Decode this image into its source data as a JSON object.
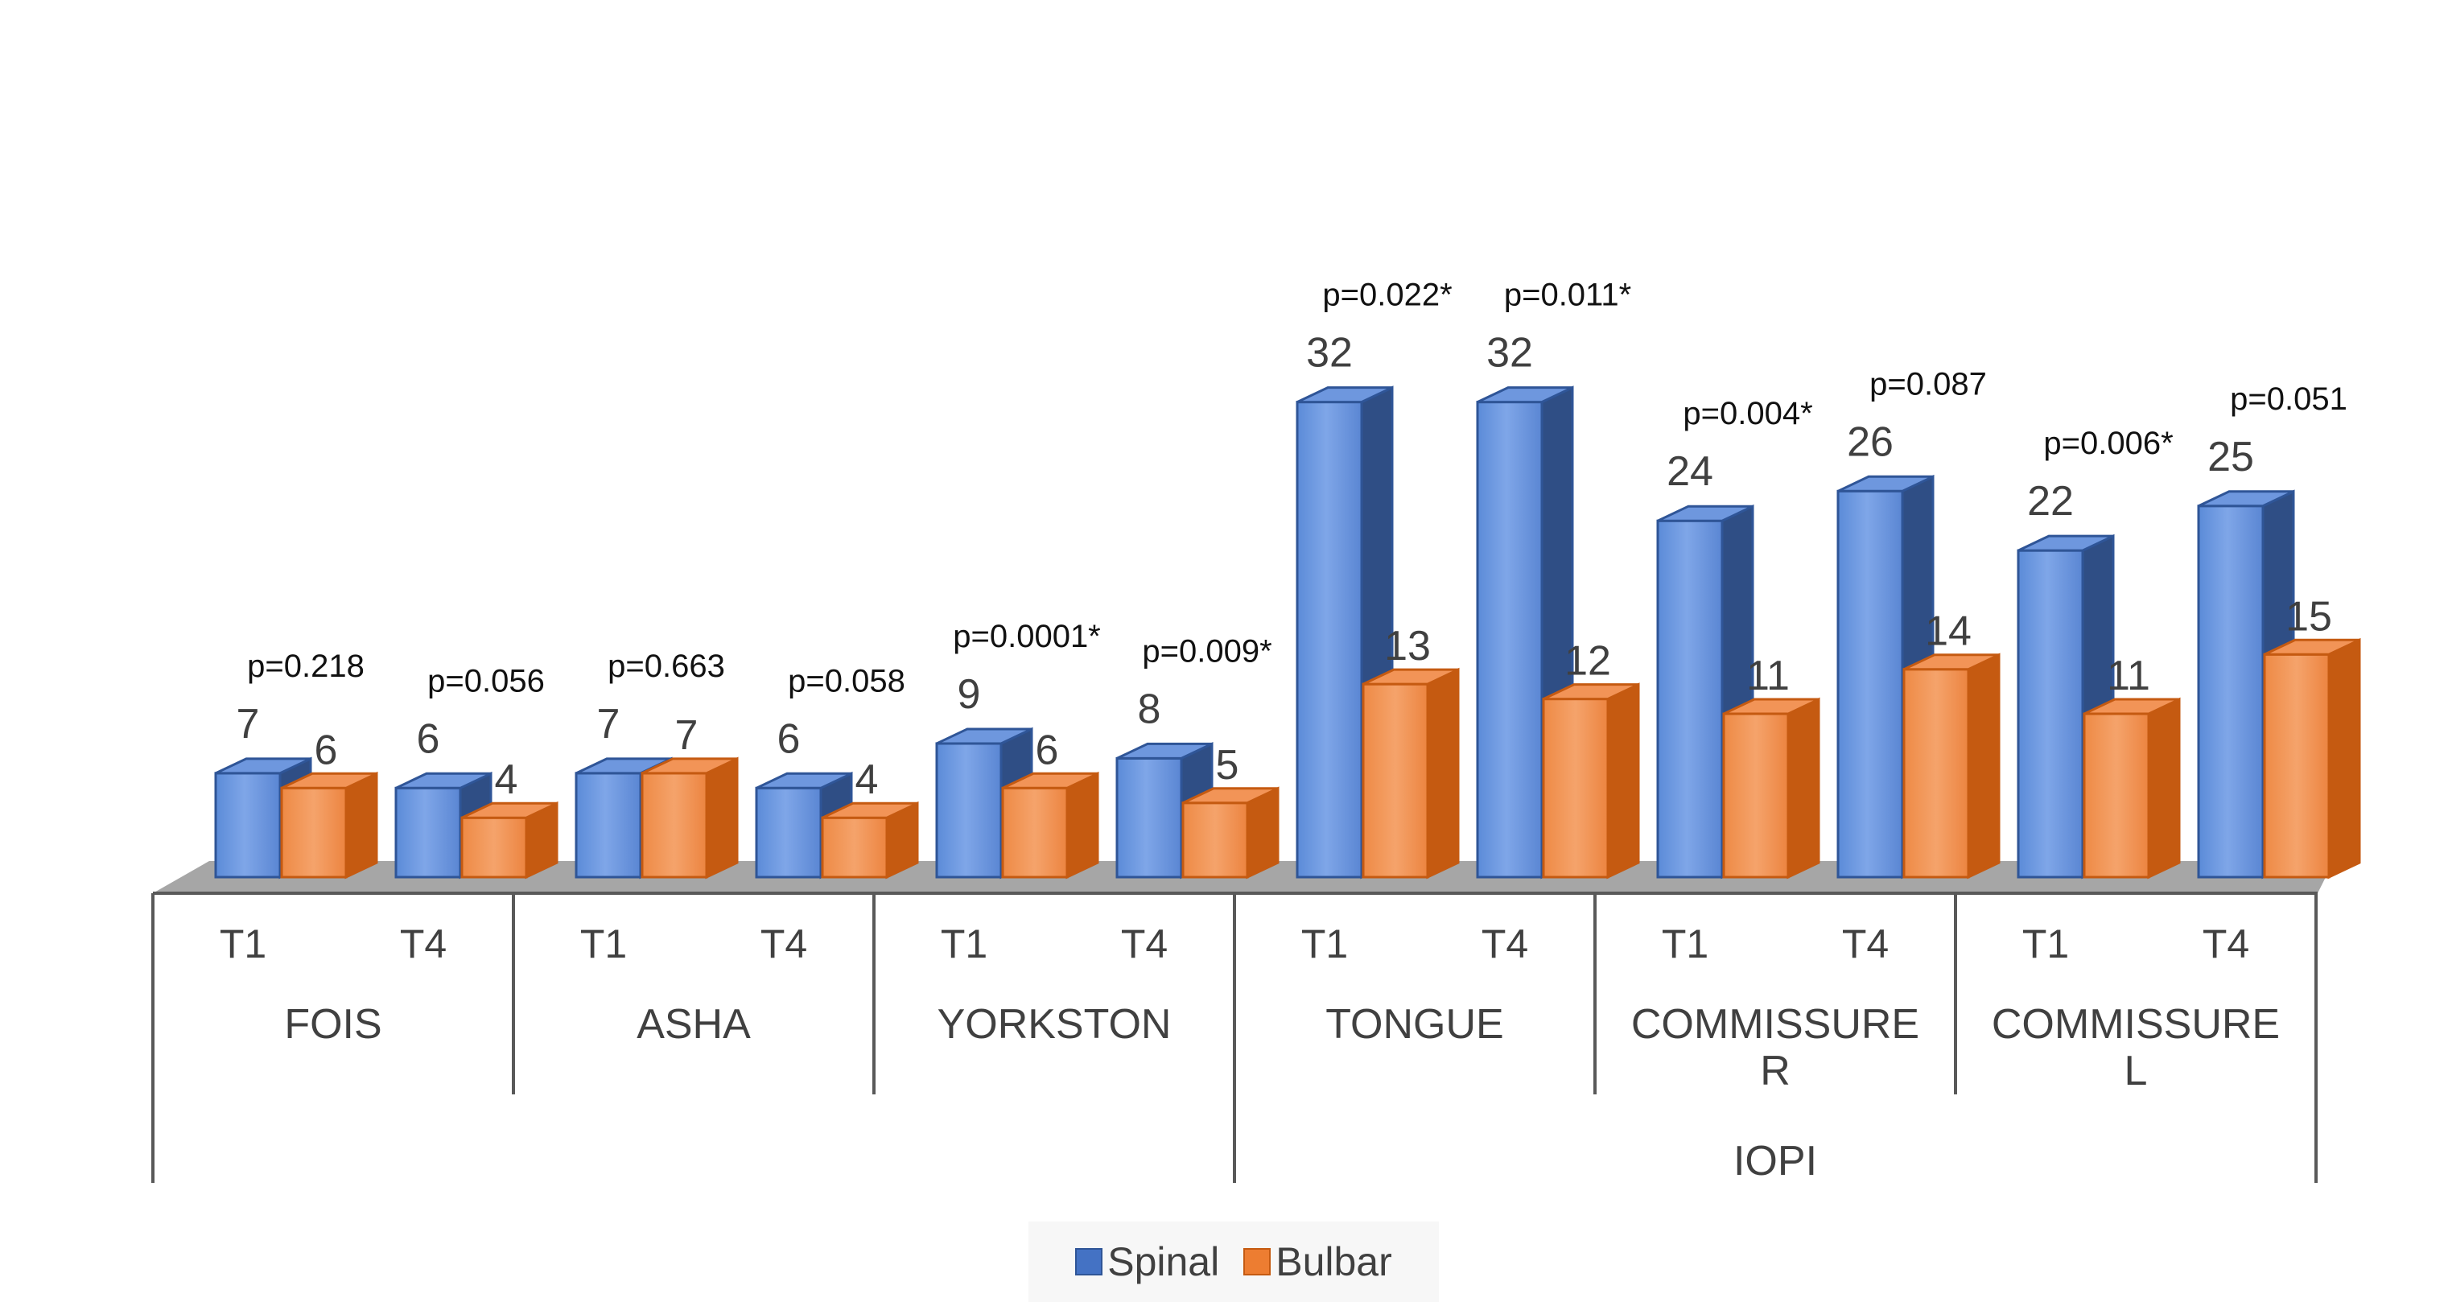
{
  "chart_data": {
    "type": "bar",
    "style": "3d-clustered-column",
    "title": "",
    "xlabel": "",
    "ylabel": "",
    "ylim": [
      0,
      35
    ],
    "grid": false,
    "legend_position": "bottom",
    "groups": [
      {
        "name": "FOIS",
        "supergroup": ""
      },
      {
        "name": "ASHA",
        "supergroup": ""
      },
      {
        "name": "YORKSTON",
        "supergroup": ""
      },
      {
        "name": "TONGUE",
        "supergroup": "IOPI"
      },
      {
        "name": "COMMISSURE R",
        "supergroup": "IOPI"
      },
      {
        "name": "COMMISSURE L",
        "supergroup": "IOPI"
      }
    ],
    "group_lines": [
      [
        "FOIS"
      ],
      [
        "ASHA"
      ],
      [
        "YORKSTON"
      ],
      [
        "TONGUE"
      ],
      [
        "COMMISSURE",
        "R"
      ],
      [
        "COMMISSURE",
        "L"
      ]
    ],
    "supergroup_label": "IOPI",
    "timepoints": [
      "T1",
      "T4"
    ],
    "categories": [
      "FOIS T1",
      "FOIS T4",
      "ASHA T1",
      "ASHA T4",
      "YORKSTON T1",
      "YORKSTON T4",
      "TONGUE T1",
      "TONGUE T4",
      "COMMISSURE R T1",
      "COMMISSURE R T4",
      "COMMISSURE L T1",
      "COMMISSURE L T4"
    ],
    "tick_labels": [
      "T1",
      "T4",
      "T1",
      "T4",
      "T1",
      "T4",
      "T1",
      "T4",
      "T1",
      "T4",
      "T1",
      "T4"
    ],
    "series": [
      {
        "name": "Spinal",
        "color": "#4472C4",
        "values": [
          7,
          6,
          7,
          6,
          9,
          8,
          32,
          32,
          24,
          26,
          22,
          25
        ]
      },
      {
        "name": "Bulbar",
        "color": "#ED7D31",
        "values": [
          6,
          4,
          7,
          4,
          6,
          5,
          13,
          12,
          11,
          14,
          11,
          15
        ]
      }
    ],
    "p_values": [
      "p=0.218",
      "p=0.056",
      "p=0.663",
      "p=0.058",
      "p=0.0001*",
      "p=0.009*",
      "p=0.022*",
      "p=0.011*",
      "p=0.004*",
      "p=0.087",
      "p=0.006*",
      "p=0.051"
    ]
  },
  "legend": {
    "spinal_label": "Spinal",
    "bulbar_label": "Bulbar"
  }
}
